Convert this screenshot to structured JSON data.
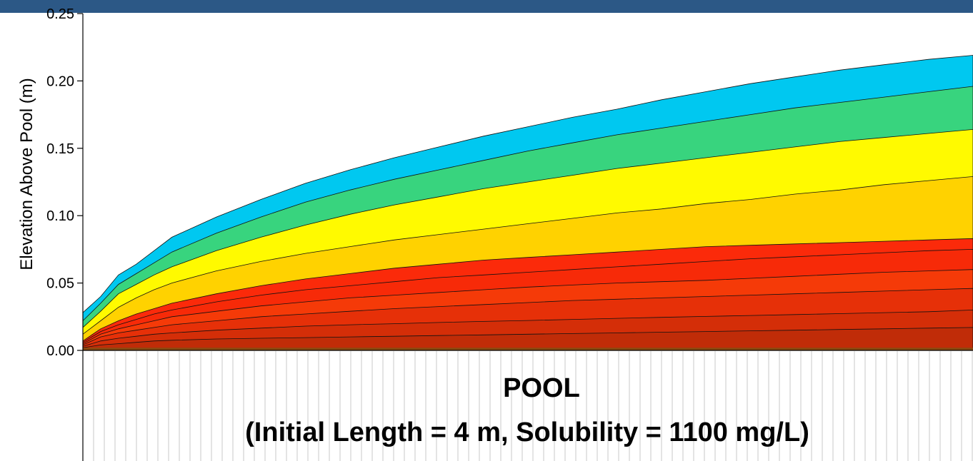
{
  "header_bar_color": "#2c5886",
  "chart_data": {
    "type": "area",
    "title": "POOL",
    "subtitle": "(Initial Length = 4 m, Solubility = 1100 mg/L)",
    "xlabel": "",
    "ylabel": "Elevation Above Pool (m)",
    "ylim": [
      0,
      0.25
    ],
    "yticks": [
      "0.00",
      "0.05",
      "0.10",
      "0.15",
      "0.20",
      "0.25"
    ],
    "xlim": [
      0,
      1
    ],
    "grid": "vertical",
    "legend": "none",
    "x": [
      0,
      0.02,
      0.04,
      0.06,
      0.08,
      0.1,
      0.15,
      0.2,
      0.25,
      0.3,
      0.35,
      0.4,
      0.45,
      0.5,
      0.55,
      0.6,
      0.65,
      0.7,
      0.75,
      0.8,
      0.85,
      0.9,
      0.95,
      1.0
    ],
    "series": [
      {
        "color": "#c02c08",
        "values": [
          0.002,
          0.004,
          0.005,
          0.006,
          0.007,
          0.0075,
          0.0085,
          0.009,
          0.0095,
          0.01,
          0.0105,
          0.011,
          0.0115,
          0.012,
          0.0125,
          0.013,
          0.0135,
          0.014,
          0.0145,
          0.015,
          0.0155,
          0.016,
          0.0165,
          0.017
        ]
      },
      {
        "color": "#d42e08",
        "values": [
          0.003,
          0.007,
          0.009,
          0.0105,
          0.012,
          0.013,
          0.015,
          0.0165,
          0.018,
          0.019,
          0.0198,
          0.0207,
          0.0215,
          0.0222,
          0.023,
          0.0238,
          0.0245,
          0.0252,
          0.0259,
          0.0266,
          0.0273,
          0.028,
          0.0287,
          0.03
        ]
      },
      {
        "color": "#e63008",
        "values": [
          0.004,
          0.01,
          0.013,
          0.015,
          0.017,
          0.019,
          0.022,
          0.025,
          0.027,
          0.029,
          0.031,
          0.0325,
          0.034,
          0.0355,
          0.037,
          0.038,
          0.039,
          0.04,
          0.041,
          0.042,
          0.043,
          0.044,
          0.045,
          0.046
        ]
      },
      {
        "color": "#f53a08",
        "values": [
          0.005,
          0.012,
          0.016,
          0.019,
          0.022,
          0.025,
          0.029,
          0.033,
          0.036,
          0.039,
          0.041,
          0.043,
          0.045,
          0.047,
          0.0485,
          0.05,
          0.051,
          0.052,
          0.0535,
          0.055,
          0.0565,
          0.058,
          0.059,
          0.06
        ]
      },
      {
        "color": "#f72a08",
        "values": [
          0.006,
          0.014,
          0.019,
          0.023,
          0.027,
          0.03,
          0.036,
          0.041,
          0.045,
          0.048,
          0.051,
          0.054,
          0.056,
          0.058,
          0.06,
          0.062,
          0.064,
          0.066,
          0.068,
          0.0695,
          0.071,
          0.0725,
          0.074,
          0.075
        ]
      },
      {
        "color": "#fb2a0a",
        "values": [
          0.007,
          0.016,
          0.022,
          0.027,
          0.031,
          0.035,
          0.042,
          0.048,
          0.053,
          0.057,
          0.061,
          0.064,
          0.067,
          0.069,
          0.071,
          0.073,
          0.075,
          0.077,
          0.078,
          0.079,
          0.08,
          0.081,
          0.082,
          0.083
        ]
      },
      {
        "color": "#ffd200",
        "values": [
          0.012,
          0.022,
          0.032,
          0.039,
          0.045,
          0.05,
          0.059,
          0.066,
          0.072,
          0.077,
          0.082,
          0.086,
          0.09,
          0.094,
          0.098,
          0.102,
          0.105,
          0.109,
          0.112,
          0.116,
          0.119,
          0.123,
          0.126,
          0.129
        ]
      },
      {
        "color": "#fffa00",
        "values": [
          0.017,
          0.029,
          0.042,
          0.049,
          0.056,
          0.062,
          0.074,
          0.084,
          0.093,
          0.101,
          0.108,
          0.114,
          0.12,
          0.125,
          0.13,
          0.135,
          0.139,
          0.143,
          0.147,
          0.151,
          0.155,
          0.158,
          0.161,
          0.164
        ]
      },
      {
        "color": "#38d47e",
        "values": [
          0.022,
          0.035,
          0.049,
          0.057,
          0.065,
          0.073,
          0.087,
          0.099,
          0.11,
          0.119,
          0.127,
          0.134,
          0.141,
          0.148,
          0.154,
          0.16,
          0.165,
          0.17,
          0.175,
          0.18,
          0.184,
          0.188,
          0.192,
          0.196
        ]
      },
      {
        "color": "#00c8f0",
        "values": [
          0.028,
          0.04,
          0.056,
          0.064,
          0.074,
          0.084,
          0.099,
          0.112,
          0.124,
          0.134,
          0.143,
          0.151,
          0.159,
          0.166,
          0.173,
          0.179,
          0.186,
          0.192,
          0.198,
          0.203,
          0.208,
          0.212,
          0.216,
          0.219
        ]
      }
    ]
  }
}
